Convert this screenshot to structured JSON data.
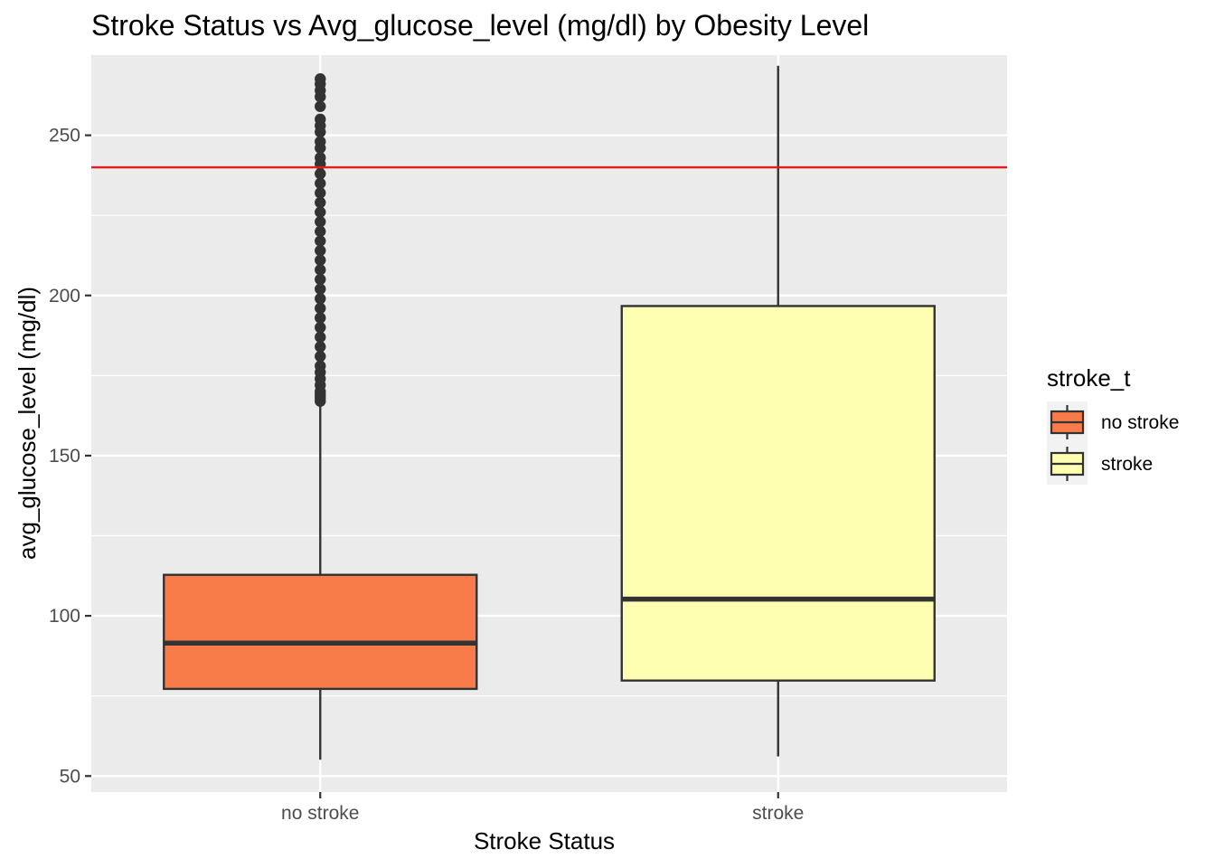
{
  "chart_data": {
    "type": "boxplot",
    "title": "Stroke Status vs Avg_glucose_level (mg/dl) by Obesity Level",
    "xlabel": "Stroke Status",
    "ylabel": "avg_glucose_level (mg/dl)",
    "ylim": [
      45,
      275
    ],
    "yticks": [
      50,
      100,
      150,
      200,
      250
    ],
    "ytick_labels": [
      "50",
      "100",
      "150",
      "200",
      "250"
    ],
    "categories": [
      "no stroke",
      "stroke"
    ],
    "boxes": [
      {
        "category": "no stroke",
        "min": 55.1,
        "q1": 77.2,
        "median": 91.5,
        "q3": 112.8,
        "whiskerHigh": 166.5,
        "fill": "#F87C4A",
        "outliers": [
          167,
          168,
          169,
          170,
          172,
          174,
          176,
          178,
          181,
          184,
          187,
          190,
          193,
          196,
          199,
          202,
          205,
          208,
          211,
          214,
          217,
          220,
          223,
          226,
          229,
          232,
          235,
          238,
          241,
          243,
          246,
          248,
          251,
          253,
          255,
          259,
          262,
          264,
          266,
          267.6
        ]
      },
      {
        "category": "stroke",
        "min": 56.1,
        "q1": 79.8,
        "median": 105.2,
        "q3": 196.7,
        "whiskerHigh": 271.7,
        "fill": "#FFFFB2",
        "outliers": []
      }
    ],
    "reference_line": {
      "y": 240,
      "color": "#E41A1C"
    },
    "legend": {
      "title": "stroke_t",
      "position": "right",
      "entries": [
        {
          "label": "no stroke",
          "color": "#F87C4A"
        },
        {
          "label": "stroke",
          "color": "#FFFFB2"
        }
      ]
    },
    "grid": true,
    "panel_background": "#EBEBEB"
  }
}
